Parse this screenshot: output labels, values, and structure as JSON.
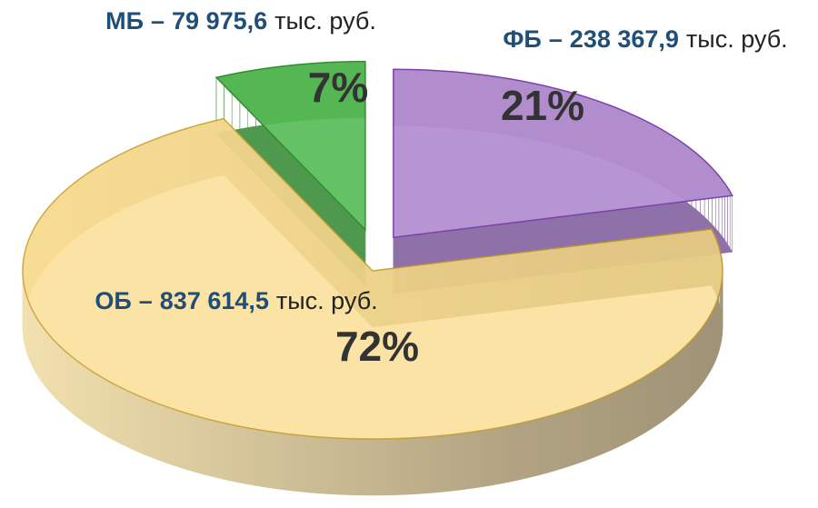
{
  "chart_data": {
    "type": "pie3d",
    "categories": [
      "ФБ",
      "ОБ",
      "МБ"
    ],
    "values": [
      21,
      72,
      7
    ],
    "value_labels": [
      "21%",
      "72%",
      "7%"
    ],
    "amounts": [
      238367.9,
      837614.5,
      79975.6
    ],
    "amount_labels": [
      "238 367,9",
      "837 614,5",
      "79 975,6"
    ],
    "separator": "–",
    "unit": "тыс. руб.",
    "colors": [
      "#b48fd0",
      "#f9dc8c",
      "#55bb55"
    ],
    "exploded": [
      true,
      false,
      true
    ]
  }
}
